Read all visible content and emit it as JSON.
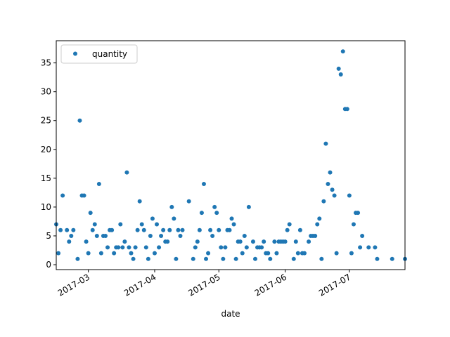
{
  "chart_data": {
    "type": "scatter",
    "xlabel": "date",
    "ylabel": "",
    "title": "",
    "xlim": [
      "2017-02-14",
      "2017-07-27"
    ],
    "ylim": [
      -0.85,
      38.85
    ],
    "x_ticks": [
      "2017-03-01",
      "2017-04-01",
      "2017-05-01",
      "2017-06-01",
      "2017-07-01"
    ],
    "x_tick_labels": [
      "2017-03",
      "2017-04",
      "2017-05",
      "2017-06",
      "2017-07"
    ],
    "y_ticks": [
      0,
      5,
      10,
      15,
      20,
      25,
      30,
      35
    ],
    "y_tick_labels": [
      "0",
      "5",
      "10",
      "15",
      "20",
      "25",
      "30",
      "35"
    ],
    "grid": false,
    "legend": "upper-left",
    "series": [
      {
        "name": "quantity",
        "color": "#1f77b4",
        "marker": "circle",
        "points": [
          [
            "2017-02-14",
            7
          ],
          [
            "2017-02-15",
            2
          ],
          [
            "2017-02-16",
            6
          ],
          [
            "2017-02-17",
            12
          ],
          [
            "2017-02-19",
            6
          ],
          [
            "2017-02-20",
            4
          ],
          [
            "2017-02-21",
            5
          ],
          [
            "2017-02-22",
            6
          ],
          [
            "2017-02-24",
            1
          ],
          [
            "2017-02-25",
            25
          ],
          [
            "2017-02-26",
            12
          ],
          [
            "2017-02-27",
            12
          ],
          [
            "2017-02-28",
            4
          ],
          [
            "2017-03-01",
            2
          ],
          [
            "2017-03-02",
            9
          ],
          [
            "2017-03-03",
            6
          ],
          [
            "2017-03-04",
            7
          ],
          [
            "2017-03-05",
            5
          ],
          [
            "2017-03-06",
            14
          ],
          [
            "2017-03-07",
            2
          ],
          [
            "2017-03-08",
            5
          ],
          [
            "2017-03-09",
            5
          ],
          [
            "2017-03-10",
            3
          ],
          [
            "2017-03-11",
            6
          ],
          [
            "2017-03-12",
            6
          ],
          [
            "2017-03-13",
            2
          ],
          [
            "2017-03-14",
            3
          ],
          [
            "2017-03-15",
            3
          ],
          [
            "2017-03-16",
            7
          ],
          [
            "2017-03-17",
            3
          ],
          [
            "2017-03-18",
            4
          ],
          [
            "2017-03-19",
            16
          ],
          [
            "2017-03-20",
            3
          ],
          [
            "2017-03-21",
            2
          ],
          [
            "2017-03-22",
            1
          ],
          [
            "2017-03-23",
            3
          ],
          [
            "2017-03-24",
            6
          ],
          [
            "2017-03-25",
            11
          ],
          [
            "2017-03-26",
            7
          ],
          [
            "2017-03-27",
            6
          ],
          [
            "2017-03-28",
            3
          ],
          [
            "2017-03-29",
            1
          ],
          [
            "2017-03-30",
            5
          ],
          [
            "2017-03-31",
            8
          ],
          [
            "2017-04-01",
            2
          ],
          [
            "2017-04-02",
            7
          ],
          [
            "2017-04-03",
            3
          ],
          [
            "2017-04-04",
            5
          ],
          [
            "2017-04-05",
            6
          ],
          [
            "2017-04-06",
            4
          ],
          [
            "2017-04-07",
            4
          ],
          [
            "2017-04-08",
            6
          ],
          [
            "2017-04-09",
            10
          ],
          [
            "2017-04-10",
            8
          ],
          [
            "2017-04-11",
            1
          ],
          [
            "2017-04-12",
            6
          ],
          [
            "2017-04-13",
            5
          ],
          [
            "2017-04-14",
            6
          ],
          [
            "2017-04-17",
            11
          ],
          [
            "2017-04-19",
            1
          ],
          [
            "2017-04-20",
            3
          ],
          [
            "2017-04-21",
            4
          ],
          [
            "2017-04-22",
            6
          ],
          [
            "2017-04-23",
            9
          ],
          [
            "2017-04-24",
            14
          ],
          [
            "2017-04-25",
            1
          ],
          [
            "2017-04-26",
            2
          ],
          [
            "2017-04-27",
            6
          ],
          [
            "2017-04-28",
            5
          ],
          [
            "2017-04-29",
            10
          ],
          [
            "2017-04-30",
            9
          ],
          [
            "2017-05-01",
            6
          ],
          [
            "2017-05-02",
            3
          ],
          [
            "2017-05-03",
            1
          ],
          [
            "2017-05-04",
            3
          ],
          [
            "2017-05-05",
            6
          ],
          [
            "2017-05-06",
            6
          ],
          [
            "2017-05-07",
            8
          ],
          [
            "2017-05-08",
            7
          ],
          [
            "2017-05-09",
            1
          ],
          [
            "2017-05-10",
            4
          ],
          [
            "2017-05-11",
            4
          ],
          [
            "2017-05-12",
            2
          ],
          [
            "2017-05-13",
            5
          ],
          [
            "2017-05-14",
            3
          ],
          [
            "2017-05-15",
            10
          ],
          [
            "2017-05-17",
            4
          ],
          [
            "2017-05-18",
            1
          ],
          [
            "2017-05-19",
            3
          ],
          [
            "2017-05-20",
            3
          ],
          [
            "2017-05-21",
            3
          ],
          [
            "2017-05-22",
            4
          ],
          [
            "2017-05-23",
            2
          ],
          [
            "2017-05-24",
            2
          ],
          [
            "2017-05-25",
            1
          ],
          [
            "2017-05-27",
            4
          ],
          [
            "2017-05-28",
            2
          ],
          [
            "2017-05-29",
            4
          ],
          [
            "2017-05-30",
            4
          ],
          [
            "2017-05-31",
            4
          ],
          [
            "2017-06-01",
            4
          ],
          [
            "2017-06-02",
            6
          ],
          [
            "2017-06-03",
            7
          ],
          [
            "2017-06-05",
            1
          ],
          [
            "2017-06-06",
            4
          ],
          [
            "2017-06-07",
            2
          ],
          [
            "2017-06-08",
            6
          ],
          [
            "2017-06-09",
            2
          ],
          [
            "2017-06-10",
            2
          ],
          [
            "2017-06-12",
            4
          ],
          [
            "2017-06-13",
            5
          ],
          [
            "2017-06-14",
            5
          ],
          [
            "2017-06-15",
            5
          ],
          [
            "2017-06-16",
            7
          ],
          [
            "2017-06-17",
            8
          ],
          [
            "2017-06-18",
            1
          ],
          [
            "2017-06-19",
            11
          ],
          [
            "2017-06-20",
            21
          ],
          [
            "2017-06-21",
            14
          ],
          [
            "2017-06-22",
            16
          ],
          [
            "2017-06-23",
            13
          ],
          [
            "2017-06-24",
            12
          ],
          [
            "2017-06-25",
            2
          ],
          [
            "2017-06-26",
            34
          ],
          [
            "2017-06-27",
            33
          ],
          [
            "2017-06-28",
            37
          ],
          [
            "2017-06-29",
            27
          ],
          [
            "2017-06-30",
            27
          ],
          [
            "2017-07-01",
            12
          ],
          [
            "2017-07-02",
            2
          ],
          [
            "2017-07-03",
            7
          ],
          [
            "2017-07-04",
            9
          ],
          [
            "2017-07-05",
            9
          ],
          [
            "2017-07-06",
            3
          ],
          [
            "2017-07-07",
            5
          ],
          [
            "2017-07-10",
            3
          ],
          [
            "2017-07-13",
            3
          ],
          [
            "2017-07-14",
            1
          ],
          [
            "2017-07-21",
            1
          ],
          [
            "2017-07-27",
            1
          ]
        ]
      }
    ]
  }
}
